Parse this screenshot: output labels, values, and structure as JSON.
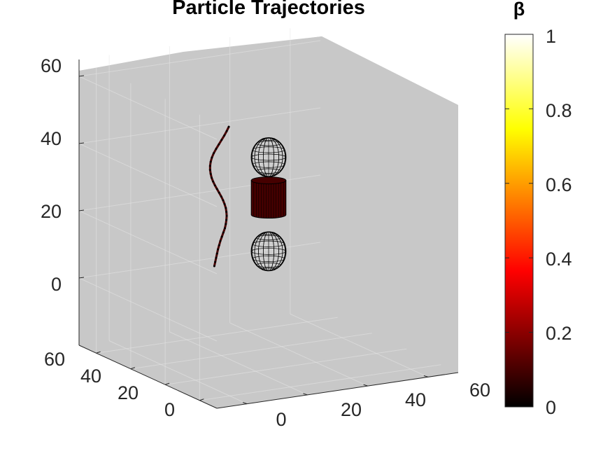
{
  "chart_data": {
    "type": "3d-line",
    "title": "Particle Trajectories",
    "x_ticks": [
      "0",
      "20",
      "40",
      "60"
    ],
    "y_ticks": [
      "0",
      "20",
      "40",
      "60"
    ],
    "z_ticks": [
      "0",
      "20",
      "40",
      "60"
    ],
    "xlim": [
      -10,
      70
    ],
    "ylim": [
      -10,
      70
    ],
    "zlim": [
      -20,
      65
    ],
    "grid": true,
    "background_color": "#c8c8c8",
    "colormap": "hot",
    "colorbar": {
      "label": "β",
      "ticks": [
        "0",
        "0.2",
        "0.4",
        "0.6",
        "0.8",
        "1"
      ],
      "range": [
        0,
        1
      ]
    },
    "series": [
      {
        "x": [
          12,
          12.3,
          12.6,
          12.9,
          13.2,
          13.6,
          14,
          14.5,
          15,
          15.5,
          15.8,
          16,
          16.1,
          16,
          15.8,
          15.4,
          14.9,
          14.3,
          13.6,
          12.9,
          12.2,
          11.6,
          11.1,
          10.8,
          10.6,
          10.6,
          10.8,
          11.2,
          11.8,
          12.6,
          13.5,
          14.4,
          15.3,
          16.1,
          16.8
        ],
        "y": [
          30,
          30,
          30,
          30,
          30,
          30,
          30,
          30,
          30,
          30,
          30,
          30,
          30,
          30,
          30,
          30,
          30,
          30,
          30,
          30,
          30,
          30,
          30,
          30,
          30,
          30,
          30,
          30,
          30,
          30,
          30,
          30,
          30,
          30,
          30
        ],
        "z": [
          10,
          11.2,
          12.4,
          13.6,
          14.8,
          16,
          17.2,
          18.4,
          19.6,
          20.8,
          22,
          23.2,
          24.4,
          25.6,
          26.8,
          28,
          29.2,
          30.4,
          31.6,
          32.8,
          34,
          35.2,
          36.4,
          37.6,
          38.8,
          40,
          41.2,
          42.4,
          43.6,
          44.8,
          46,
          47.2,
          48.4,
          49.6,
          50.8
        ],
        "beta": [
          0.1,
          0.1,
          0.1,
          0.1,
          0.1,
          0.1,
          0.1,
          0.1,
          0.1,
          0.1,
          0.1,
          0.1,
          0.1,
          0.1,
          0.1,
          0.1,
          0.1,
          0.1,
          0.1,
          0.1,
          0.1,
          0.1,
          0.1,
          0.1,
          0.1,
          0.1,
          0.1,
          0.1,
          0.1,
          0.1,
          0.1,
          0.1,
          0.1,
          0.1,
          0.1
        ]
      }
    ],
    "objects": [
      {
        "kind": "sphere-mesh",
        "center": [
          30,
          30,
          40
        ],
        "radius": 5
      },
      {
        "kind": "cylinder",
        "center": [
          30,
          30,
          28
        ],
        "radius": 5,
        "height": 12,
        "beta": 0.1
      },
      {
        "kind": "sphere-mesh",
        "center": [
          30,
          30,
          12
        ],
        "radius": 5
      }
    ]
  }
}
